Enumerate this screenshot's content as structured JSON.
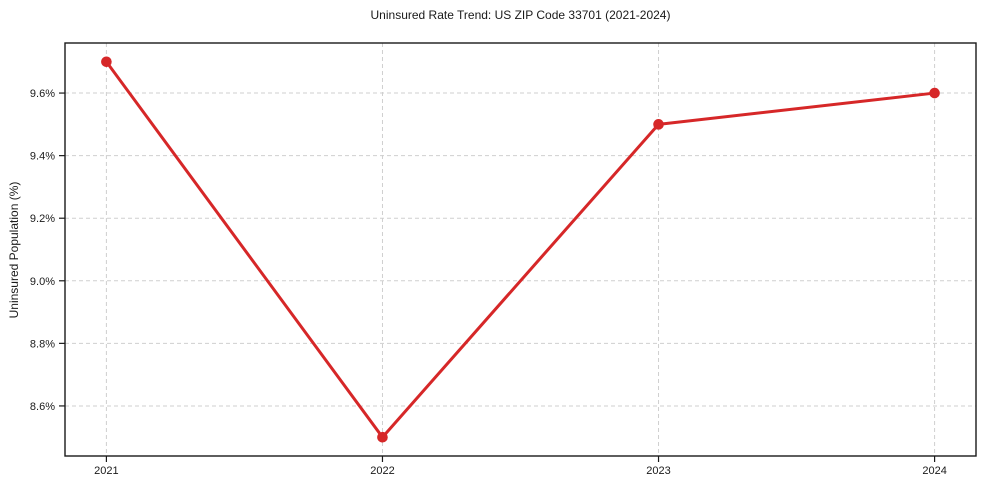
{
  "chart_data": {
    "type": "line",
    "title": "Uninsured Rate Trend: US ZIP Code 33701 (2021-2024)",
    "xlabel": "",
    "ylabel": "Uninsured Population (%)",
    "x": [
      2021,
      2022,
      2023,
      2024
    ],
    "x_tick_labels": [
      "2021",
      "2022",
      "2023",
      "2024"
    ],
    "y_ticks": [
      8.6,
      8.8,
      9.0,
      9.2,
      9.4,
      9.6
    ],
    "y_tick_labels": [
      "8.6%",
      "8.8%",
      "9.0%",
      "9.2%",
      "9.4%",
      "9.6%"
    ],
    "series": [
      {
        "name": "Uninsured Population (%)",
        "values": [
          9.7,
          8.5,
          9.5,
          9.6
        ],
        "color": "#d62728",
        "marker": "circle",
        "line_width": 3,
        "marker_radius": 5.3
      }
    ],
    "xlim": [
      2020.85,
      2024.15
    ],
    "ylim": [
      8.44,
      9.76
    ],
    "grid": true,
    "legend": "none",
    "grid_color": "#cfcfcf",
    "axis_color": "#1a1a1a",
    "background": "#ffffff"
  }
}
